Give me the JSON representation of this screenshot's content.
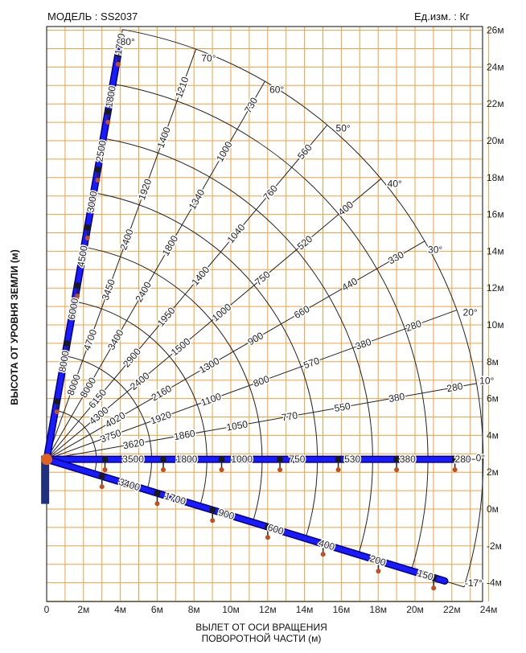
{
  "header": {
    "model": "МОДЕЛЬ : SS2037",
    "units": "Ед.изм. : Кг"
  },
  "axes": {
    "y_label": "ВЫСОТА ОТ УРОВНЯ ЗЕМЛИ (м)",
    "x_label_line1": "ВЫЛЕТ ОТ ОСИ ВРАЩЕНИЯ",
    "x_label_line2": "ПОВОРОТНОЙ ЧАСТИ (м)",
    "x_ticks": [
      "0",
      "2м",
      "4м",
      "6м",
      "8м",
      "10м",
      "12м",
      "14м",
      "16м",
      "18м",
      "20м",
      "22м",
      "24м"
    ],
    "y_ticks": [
      "-4м",
      "-2м",
      "0м",
      "2м",
      "4м",
      "6м",
      "8м",
      "10м",
      "12м",
      "14м",
      "16м",
      "18м",
      "20м",
      "22м",
      "24м",
      "26м"
    ]
  },
  "colors": {
    "grid": "#f0a040",
    "boom": "#1a1aff",
    "boom_outline": "#000080",
    "arc": "#222222",
    "text": "#222222"
  },
  "chart_data": {
    "type": "load-chart",
    "x_range": [
      0,
      24
    ],
    "y_range": [
      -5,
      26
    ],
    "pivot": [
      0,
      2.7
    ],
    "arc_radii": [
      2.7,
      5.7,
      8.7,
      11.7,
      14.7,
      17.7,
      20.7,
      23.7
    ],
    "angle_labels": [
      {
        "text": "80°",
        "x": 4.0,
        "y": 25.2
      },
      {
        "text": "70°",
        "x": 8.4,
        "y": 24.3
      },
      {
        "text": "60°",
        "x": 12.1,
        "y": 22.6
      },
      {
        "text": "50°",
        "x": 15.7,
        "y": 20.5
      },
      {
        "text": "40°",
        "x": 18.5,
        "y": 17.5
      },
      {
        "text": "30°",
        "x": 20.7,
        "y": 13.9
      },
      {
        "text": "20°",
        "x": 22.6,
        "y": 10.5
      },
      {
        "text": "10°",
        "x": 23.5,
        "y": 6.8
      },
      {
        "text": "0°",
        "x": 23.3,
        "y": 2.6
      },
      {
        "text": "-17°",
        "x": 22.7,
        "y": -4.2
      }
    ],
    "rays": [
      {
        "angle": 80,
        "labels": [
          "1700",
          "1800",
          "2500",
          "3000",
          "4500",
          "6000",
          "8000"
        ],
        "label_r": [
          22.9,
          20.0,
          17.0,
          14.2,
          11.2,
          8.3,
          5.4
        ]
      },
      {
        "angle": 70,
        "labels": [
          "1210",
          "1400",
          "1920",
          "2400",
          "3450",
          "4700",
          "8000"
        ],
        "label_r": [
          21.5,
          18.6,
          15.6,
          12.7,
          9.8,
          6.9,
          4.3
        ]
      },
      {
        "angle": 60,
        "labels": [
          "730",
          "1000",
          "1340",
          "1800",
          "2400",
          "3400",
          "8000"
        ],
        "label_r": [
          22.2,
          19.3,
          16.3,
          13.4,
          10.5,
          7.5,
          4.5
        ]
      },
      {
        "angle": 50,
        "labels": [
          "560",
          "760",
          "1040",
          "1400",
          "1950",
          "2900",
          "6150"
        ],
        "label_r": [
          21.8,
          18.9,
          16.0,
          13.0,
          10.1,
          7.2,
          4.3
        ]
      },
      {
        "angle": 40,
        "labels": [
          "400",
          "520",
          "750",
          "1000",
          "1500",
          "2400",
          "4300"
        ],
        "label_r": [
          21.2,
          18.3,
          15.3,
          12.4,
          9.5,
          6.6,
          3.7
        ]
      },
      {
        "angle": 30,
        "labels": [
          "330",
          "440",
          "660",
          "900",
          "1300",
          "2160",
          "4020"
        ],
        "label_r": [
          21.9,
          19.0,
          16.0,
          13.1,
          10.2,
          7.2,
          4.3
        ]
      },
      {
        "angle": 20,
        "labels": [
          "280",
          "380",
          "570",
          "800",
          "1100",
          "1920",
          "3750"
        ],
        "label_r": [
          21.2,
          18.3,
          15.3,
          12.4,
          9.5,
          6.6,
          3.7
        ]
      },
      {
        "angle": 10,
        "labels": [
          "280",
          "380",
          "550",
          "770",
          "1050",
          "1860",
          "3620"
        ],
        "label_r": [
          22.5,
          19.3,
          16.3,
          13.4,
          10.5,
          7.6,
          4.8
        ]
      },
      {
        "angle": 0,
        "labels": [
          "280",
          "380",
          "530",
          "750",
          "1000",
          "1800",
          "3500"
        ],
        "label_r": [
          22.6,
          19.6,
          16.6,
          13.6,
          10.6,
          7.6,
          4.7
        ]
      },
      {
        "angle": -17,
        "labels": [
          "150",
          "200",
          "400",
          "600",
          "900",
          "1700",
          "3400"
        ],
        "label_r": [
          21.5,
          18.8,
          15.9,
          13.0,
          10.2,
          7.3,
          4.7
        ]
      }
    ]
  }
}
